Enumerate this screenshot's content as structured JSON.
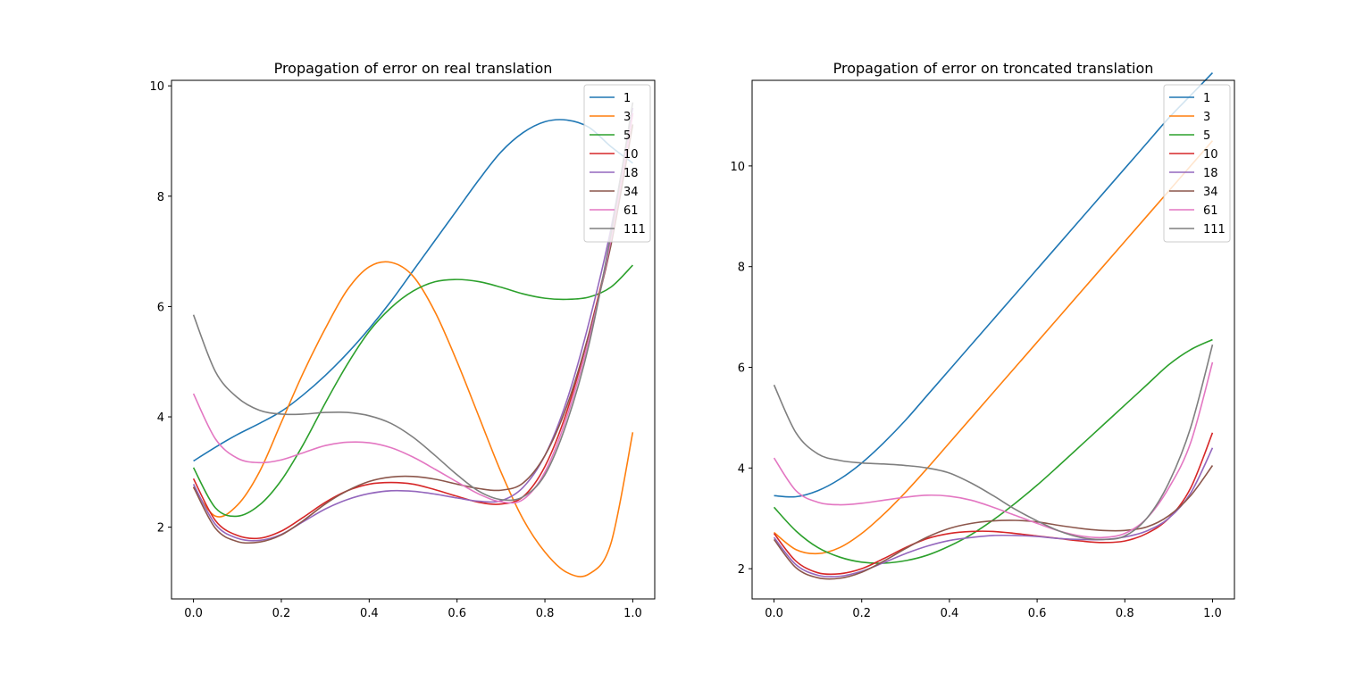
{
  "chart_data": [
    {
      "type": "line",
      "title": "Propagation of error on real translation",
      "xlabel": "",
      "ylabel": "",
      "xlim": [
        -0.05,
        1.05
      ],
      "ylim": [
        0.7,
        10.1
      ],
      "xticks": [
        0.0,
        0.2,
        0.4,
        0.6,
        0.8,
        1.0
      ],
      "xtick_labels": [
        "0.0",
        "0.2",
        "0.4",
        "0.6",
        "0.8",
        "1.0"
      ],
      "yticks": [
        2,
        4,
        6,
        8,
        10
      ],
      "ytick_labels": [
        "2",
        "4",
        "6",
        "8",
        "10"
      ],
      "grid": false,
      "legend_position": "top-right",
      "x": [
        0.0,
        0.05,
        0.1,
        0.15,
        0.2,
        0.25,
        0.3,
        0.35,
        0.4,
        0.45,
        0.5,
        0.55,
        0.6,
        0.65,
        0.7,
        0.75,
        0.8,
        0.85,
        0.9,
        0.95,
        1.0
      ],
      "series": [
        {
          "name": "1",
          "color": "#1f77b4",
          "values": [
            3.2,
            3.45,
            3.68,
            3.88,
            4.1,
            4.4,
            4.75,
            5.15,
            5.6,
            6.1,
            6.65,
            7.2,
            7.75,
            8.3,
            8.8,
            9.15,
            9.35,
            9.38,
            9.25,
            8.9,
            8.6
          ]
        },
        {
          "name": "3",
          "color": "#ff7f0e",
          "values": [
            2.72,
            2.2,
            2.4,
            3.0,
            3.9,
            4.8,
            5.6,
            6.3,
            6.72,
            6.8,
            6.55,
            5.9,
            5.0,
            4.0,
            3.0,
            2.15,
            1.55,
            1.18,
            1.15,
            1.7,
            3.72
          ]
        },
        {
          "name": "5",
          "color": "#2ca02c",
          "values": [
            3.08,
            2.35,
            2.2,
            2.4,
            2.85,
            3.5,
            4.25,
            4.95,
            5.55,
            5.98,
            6.28,
            6.45,
            6.49,
            6.45,
            6.35,
            6.23,
            6.15,
            6.13,
            6.17,
            6.35,
            6.75
          ]
        },
        {
          "name": "10",
          "color": "#d62728",
          "values": [
            2.88,
            2.12,
            1.85,
            1.8,
            1.93,
            2.18,
            2.45,
            2.66,
            2.78,
            2.81,
            2.78,
            2.68,
            2.56,
            2.45,
            2.42,
            2.55,
            3.1,
            4.1,
            5.5,
            7.2,
            9.5
          ]
        },
        {
          "name": "18",
          "color": "#9467bd",
          "values": [
            2.78,
            2.05,
            1.8,
            1.76,
            1.87,
            2.1,
            2.33,
            2.5,
            2.61,
            2.66,
            2.65,
            2.6,
            2.53,
            2.47,
            2.48,
            2.72,
            3.3,
            4.3,
            5.7,
            7.4,
            9.6
          ]
        },
        {
          "name": "34",
          "color": "#8c564b",
          "values": [
            2.73,
            1.98,
            1.74,
            1.73,
            1.86,
            2.12,
            2.42,
            2.66,
            2.83,
            2.91,
            2.92,
            2.87,
            2.78,
            2.7,
            2.67,
            2.8,
            3.3,
            4.2,
            5.5,
            7.1,
            9.3
          ]
        },
        {
          "name": "61",
          "color": "#e377c2",
          "values": [
            4.42,
            3.6,
            3.25,
            3.17,
            3.22,
            3.35,
            3.48,
            3.54,
            3.53,
            3.44,
            3.27,
            3.05,
            2.82,
            2.6,
            2.46,
            2.5,
            3.0,
            4.0,
            5.4,
            7.2,
            9.5
          ]
        },
        {
          "name": "111",
          "color": "#7f7f7f",
          "values": [
            5.85,
            4.82,
            4.35,
            4.12,
            4.05,
            4.05,
            4.08,
            4.08,
            4.02,
            3.88,
            3.63,
            3.3,
            2.95,
            2.65,
            2.5,
            2.55,
            2.95,
            3.9,
            5.3,
            7.3,
            9.7
          ]
        }
      ]
    },
    {
      "type": "line",
      "title": "Propagation of error on troncated translation",
      "xlabel": "",
      "ylabel": "",
      "xlim": [
        -0.05,
        1.05
      ],
      "ylim": [
        1.4,
        11.7
      ],
      "xticks": [
        0.0,
        0.2,
        0.4,
        0.6,
        0.8,
        1.0
      ],
      "xtick_labels": [
        "0.0",
        "0.2",
        "0.4",
        "0.6",
        "0.8",
        "1.0"
      ],
      "yticks": [
        2,
        4,
        6,
        8,
        10
      ],
      "ytick_labels": [
        "2",
        "4",
        "6",
        "8",
        "10"
      ],
      "grid": false,
      "legend_position": "top-right",
      "x": [
        0.0,
        0.05,
        0.1,
        0.15,
        0.2,
        0.25,
        0.3,
        0.35,
        0.4,
        0.45,
        0.5,
        0.55,
        0.6,
        0.65,
        0.7,
        0.75,
        0.8,
        0.85,
        0.9,
        0.95,
        1.0
      ],
      "series": [
        {
          "name": "1",
          "color": "#1f77b4",
          "values": [
            3.45,
            3.43,
            3.55,
            3.78,
            4.1,
            4.5,
            4.95,
            5.45,
            5.95,
            6.45,
            6.95,
            7.45,
            7.95,
            8.45,
            8.95,
            9.45,
            9.95,
            10.45,
            10.95,
            11.4,
            11.85
          ]
        },
        {
          "name": "3",
          "color": "#ff7f0e",
          "values": [
            2.72,
            2.38,
            2.3,
            2.42,
            2.7,
            3.08,
            3.52,
            4.0,
            4.5,
            5.0,
            5.5,
            6.0,
            6.5,
            7.0,
            7.5,
            8.0,
            8.5,
            9.0,
            9.5,
            10.0,
            10.5
          ]
        },
        {
          "name": "5",
          "color": "#2ca02c",
          "values": [
            3.22,
            2.75,
            2.42,
            2.23,
            2.13,
            2.11,
            2.16,
            2.27,
            2.45,
            2.68,
            2.97,
            3.3,
            3.66,
            4.05,
            4.45,
            4.85,
            5.25,
            5.65,
            6.05,
            6.35,
            6.55
          ]
        },
        {
          "name": "10",
          "color": "#d62728",
          "values": [
            2.7,
            2.15,
            1.92,
            1.9,
            2.0,
            2.2,
            2.42,
            2.6,
            2.7,
            2.74,
            2.74,
            2.7,
            2.65,
            2.6,
            2.55,
            2.52,
            2.55,
            2.7,
            3.0,
            3.6,
            4.7
          ]
        },
        {
          "name": "18",
          "color": "#9467bd",
          "values": [
            2.62,
            2.08,
            1.87,
            1.85,
            1.95,
            2.12,
            2.3,
            2.45,
            2.56,
            2.62,
            2.66,
            2.66,
            2.64,
            2.6,
            2.58,
            2.58,
            2.63,
            2.75,
            3.0,
            3.5,
            4.4
          ]
        },
        {
          "name": "34",
          "color": "#8c564b",
          "values": [
            2.58,
            2.02,
            1.82,
            1.81,
            1.93,
            2.15,
            2.4,
            2.63,
            2.8,
            2.9,
            2.95,
            2.96,
            2.93,
            2.86,
            2.8,
            2.76,
            2.76,
            2.83,
            3.05,
            3.45,
            4.05
          ]
        },
        {
          "name": "61",
          "color": "#e377c2",
          "values": [
            4.2,
            3.55,
            3.32,
            3.27,
            3.3,
            3.36,
            3.42,
            3.46,
            3.44,
            3.36,
            3.22,
            3.06,
            2.9,
            2.75,
            2.65,
            2.62,
            2.7,
            3.0,
            3.6,
            4.5,
            6.1
          ]
        },
        {
          "name": "111",
          "color": "#7f7f7f",
          "values": [
            5.65,
            4.7,
            4.28,
            4.15,
            4.1,
            4.08,
            4.05,
            4.0,
            3.9,
            3.7,
            3.45,
            3.18,
            2.95,
            2.75,
            2.62,
            2.58,
            2.65,
            3.0,
            3.7,
            4.8,
            6.45
          ]
        }
      ]
    }
  ]
}
